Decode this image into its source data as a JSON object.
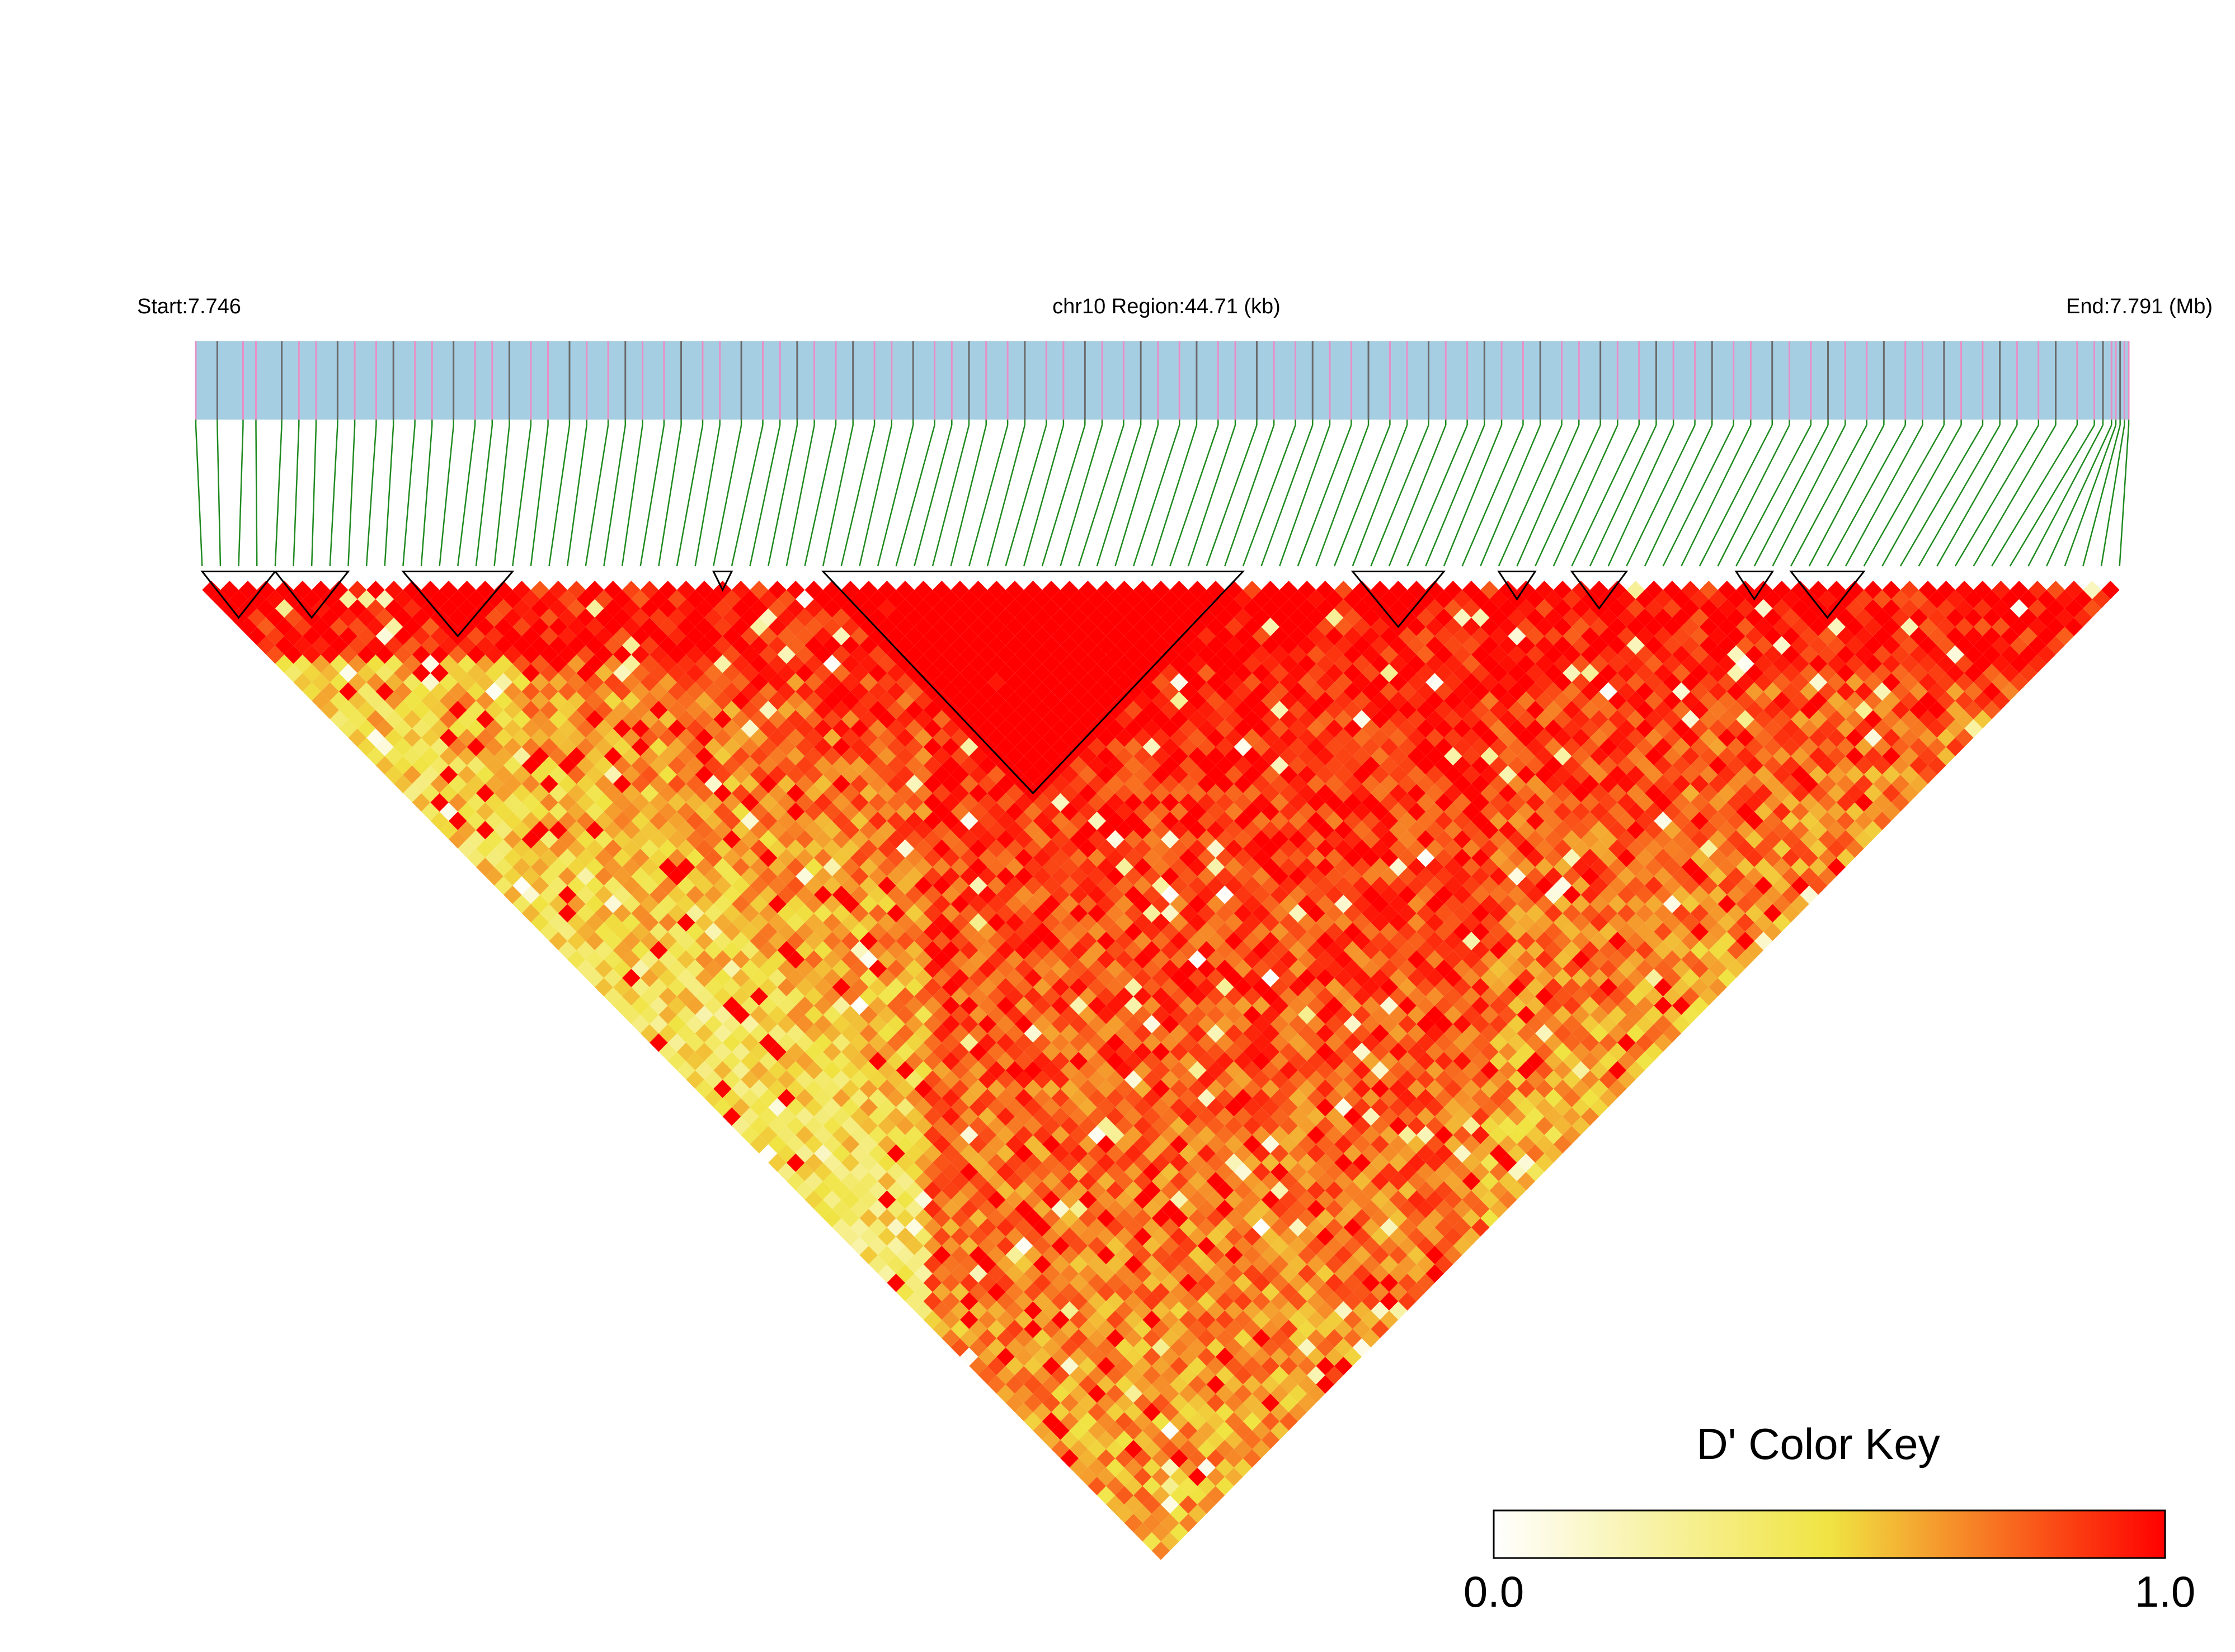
{
  "header": {
    "start_label": "Start:7.746",
    "region_label": "chr10 Region:44.71 (kb)",
    "end_label": "End:7.791 (Mb)"
  },
  "colors": {
    "track_fill": "#a6cee3",
    "snp_tick_pink": "#e88fc6",
    "snp_tick_gray": "#6a6a6a",
    "connector": "#1f8a1f",
    "ld_low": "#ffffff",
    "ld_mid": "#f0e442",
    "ld_high": "#ff0000",
    "block_outline": "#000000"
  },
  "chart_data": {
    "type": "heatmap",
    "plot_kind": "LD triangle heatmap",
    "chromosome": "chr10",
    "start_mb": 7.746,
    "end_mb": 7.791,
    "region_kb": 44.71,
    "n_snps": 106,
    "snp_positions_mb": [
      7.746,
      7.7465,
      7.7471,
      7.7474,
      7.748,
      7.7484,
      7.7488,
      7.7493,
      7.7497,
      7.7502,
      7.7506,
      7.7511,
      7.7515,
      7.752,
      7.7525,
      7.7529,
      7.7533,
      7.7538,
      7.7542,
      7.7547,
      7.7551,
      7.7556,
      7.756,
      7.7564,
      7.7569,
      7.7573,
      7.7578,
      7.7582,
      7.7587,
      7.7592,
      7.7596,
      7.76,
      7.7604,
      7.7609,
      7.7613,
      7.7618,
      7.7622,
      7.7627,
      7.7632,
      7.7636,
      7.764,
      7.7644,
      7.7649,
      7.7653,
      7.7658,
      7.7662,
      7.7667,
      7.7671,
      7.7676,
      7.768,
      7.7684,
      7.7689,
      7.7693,
      7.7698,
      7.7702,
      7.7707,
      7.7711,
      7.7716,
      7.772,
      7.7724,
      7.7729,
      7.7733,
      7.7738,
      7.7742,
      7.7747,
      7.7751,
      7.7756,
      7.776,
      7.7764,
      7.7769,
      7.7773,
      7.7778,
      7.7782,
      7.7787,
      7.7791,
      7.7796,
      7.78,
      7.7804,
      7.7809,
      7.7813,
      7.7818,
      7.7822,
      7.7827,
      7.7831,
      7.7836,
      7.784,
      7.7844,
      7.7849,
      7.7853,
      7.7858,
      7.7862,
      7.7867,
      7.7871,
      7.7876,
      7.788,
      7.7884,
      7.7889,
      7.7893,
      7.7898,
      7.7902,
      7.7904,
      7.7906,
      7.7907,
      7.7908,
      7.7909,
      7.791
    ],
    "ld_blocks": [
      {
        "first_snp": 0,
        "last_snp": 4
      },
      {
        "first_snp": 4,
        "last_snp": 8
      },
      {
        "first_snp": 11,
        "last_snp": 17
      },
      {
        "first_snp": 28,
        "last_snp": 29
      },
      {
        "first_snp": 34,
        "last_snp": 57
      },
      {
        "first_snp": 63,
        "last_snp": 68
      },
      {
        "first_snp": 71,
        "last_snp": 73
      },
      {
        "first_snp": 75,
        "last_snp": 78
      },
      {
        "first_snp": 84,
        "last_snp": 86
      },
      {
        "first_snp": 87,
        "last_snp": 91
      }
    ],
    "dprime_matrix_note": "pairwise D' values (0.0-1.0) between the 106 SNPs; high D' near diagonal and in central block, low D' toward far-apart pairs on left side",
    "color_key": {
      "title": "D' Color Key",
      "min_label": "0.0",
      "max_label": "1.0",
      "min": 0.0,
      "max": 1.0
    }
  }
}
